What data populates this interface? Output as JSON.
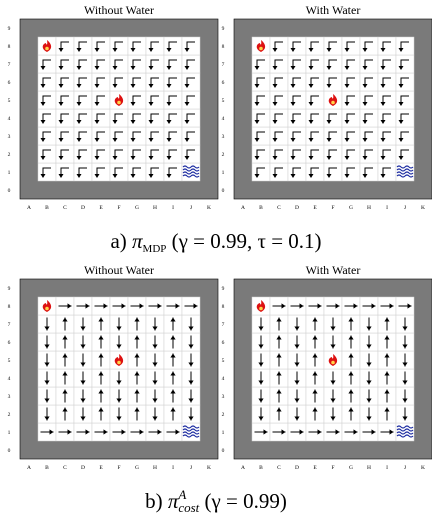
{
  "figure": {
    "panels": [
      {
        "title": "Without Water",
        "policy": "mdp",
        "water": false
      },
      {
        "title": "With Water",
        "policy": "mdp",
        "water": true
      },
      {
        "title": "Without Water",
        "policy": "cost",
        "water": false
      },
      {
        "title": "With Water",
        "policy": "cost",
        "water": true
      }
    ],
    "captions": [
      {
        "prefix": "a) ",
        "symbol": "π",
        "sub": "MDP",
        "sup": "",
        "params": " (γ = 0.99, τ = 0.1)"
      },
      {
        "prefix": "b) ",
        "symbol": "π",
        "sub": "cost",
        "sup": "A",
        "params": " (γ = 0.99)"
      }
    ],
    "col_labels": [
      "A",
      "B",
      "C",
      "D",
      "E",
      "F",
      "G",
      "H",
      "I",
      "J",
      "K"
    ],
    "row_labels": [
      "0",
      "1",
      "2",
      "3",
      "4",
      "5",
      "6",
      "7",
      "8",
      "9"
    ],
    "fire_cells": [
      "B8",
      "F5"
    ],
    "water_cell": "J1",
    "colors": {
      "wall": "#7a7a7a",
      "cell": "#ffffff",
      "arrow": "#000000",
      "fire": "#dd1111",
      "water": "#1a2aa0"
    }
  }
}
